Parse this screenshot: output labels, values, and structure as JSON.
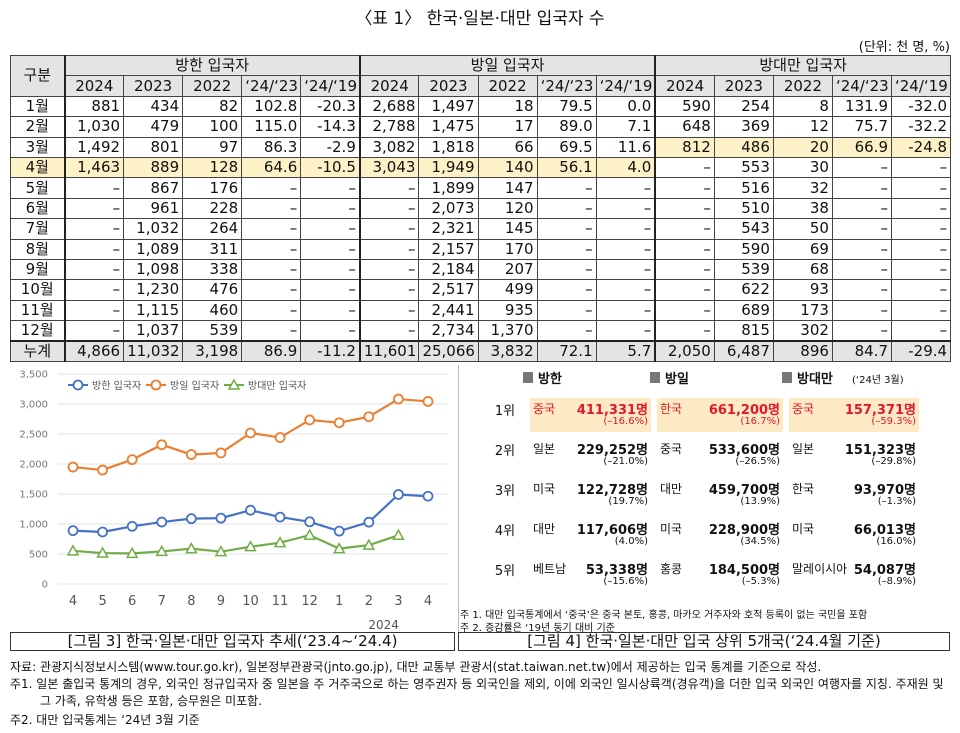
{
  "title": "〈표 1〉 한국·일본·대만 입국자 수",
  "unit": "(단위: 천 명, %)",
  "table": {
    "corner": "구분",
    "groups": [
      "방한 입국자",
      "방일 입국자",
      "방대만 입국자"
    ],
    "subheaders": [
      "2024",
      "2023",
      "2022",
      "‘24/‘23",
      "‘24/‘19",
      "2024",
      "2023",
      "2022",
      "‘24/‘23",
      "‘24/‘19",
      "2024",
      "2023",
      "2022",
      "‘24/‘23",
      "‘24/‘19"
    ],
    "rows": [
      [
        "1월",
        "881",
        "434",
        "82",
        "102.8",
        "-20.3",
        "2,688",
        "1,497",
        "18",
        "79.5",
        "0.0",
        "590",
        "254",
        "8",
        "131.9",
        "-32.0"
      ],
      [
        "2월",
        "1,030",
        "479",
        "100",
        "115.0",
        "-14.3",
        "2,788",
        "1,475",
        "17",
        "89.0",
        "7.1",
        "648",
        "369",
        "12",
        "75.7",
        "-32.2"
      ],
      [
        "3월",
        "1,492",
        "801",
        "97",
        "86.3",
        "-2.9",
        "3,082",
        "1,818",
        "66",
        "69.5",
        "11.6",
        "812",
        "486",
        "20",
        "66.9",
        "-24.8"
      ],
      [
        "4월",
        "1,463",
        "889",
        "128",
        "64.6",
        "-10.5",
        "3,043",
        "1,949",
        "140",
        "56.1",
        "4.0",
        "–",
        "553",
        "30",
        "–",
        "–"
      ],
      [
        "5월",
        "–",
        "867",
        "176",
        "–",
        "–",
        "–",
        "1,899",
        "147",
        "–",
        "–",
        "–",
        "516",
        "32",
        "–",
        "–"
      ],
      [
        "6월",
        "–",
        "961",
        "228",
        "–",
        "–",
        "–",
        "2,073",
        "120",
        "–",
        "–",
        "–",
        "510",
        "38",
        "–",
        "–"
      ],
      [
        "7월",
        "–",
        "1,032",
        "264",
        "–",
        "–",
        "–",
        "2,321",
        "145",
        "–",
        "–",
        "–",
        "543",
        "50",
        "–",
        "–"
      ],
      [
        "8월",
        "–",
        "1,089",
        "311",
        "–",
        "–",
        "–",
        "2,157",
        "170",
        "–",
        "–",
        "–",
        "590",
        "69",
        "–",
        "–"
      ],
      [
        "9월",
        "–",
        "1,098",
        "338",
        "–",
        "–",
        "–",
        "2,184",
        "207",
        "–",
        "–",
        "–",
        "539",
        "68",
        "–",
        "–"
      ],
      [
        "10월",
        "–",
        "1,230",
        "476",
        "–",
        "–",
        "–",
        "2,517",
        "499",
        "–",
        "–",
        "–",
        "622",
        "93",
        "–",
        "–"
      ],
      [
        "11월",
        "–",
        "1,115",
        "460",
        "–",
        "–",
        "–",
        "2,441",
        "935",
        "–",
        "–",
        "–",
        "689",
        "173",
        "–",
        "–"
      ],
      [
        "12월",
        "–",
        "1,037",
        "539",
        "–",
        "–",
        "–",
        "2,734",
        "1,370",
        "–",
        "–",
        "–",
        "815",
        "302",
        "–",
        "–"
      ],
      [
        "누계",
        "4,866",
        "11,032",
        "3,198",
        "86.9",
        "-11.2",
        "11,601",
        "25,066",
        "3,832",
        "72.1",
        "5.7",
        "2,050",
        "6,487",
        "896",
        "84.7",
        "-29.4"
      ]
    ]
  },
  "chart_data": {
    "type": "line",
    "categories": [
      "4",
      "5",
      "6",
      "7",
      "8",
      "9",
      "10",
      "11",
      "12",
      "1",
      "2",
      "3",
      "4"
    ],
    "x_group_label": "2024",
    "ylim": [
      0,
      3500
    ],
    "yticks": [
      0,
      500,
      {
        "value": 1000,
        "label": "1,000"
      },
      {
        "value": 1500,
        "label": "1,500"
      },
      {
        "value": 2000,
        "label": "2,000"
      },
      {
        "value": 2500,
        "label": "2,500"
      },
      {
        "value": 3000,
        "label": "3,000"
      },
      {
        "value": 3500,
        "label": "3,500"
      }
    ],
    "grid": true,
    "series": [
      {
        "name": "방한 입국자",
        "color": "#4472c4",
        "values": [
          889,
          867,
          961,
          1032,
          1089,
          1098,
          1230,
          1115,
          1037,
          881,
          1030,
          1492,
          1463
        ]
      },
      {
        "name": "방일 입국자",
        "color": "#ed7d31",
        "values": [
          1949,
          1899,
          2073,
          2321,
          2157,
          2184,
          2517,
          2441,
          2734,
          2688,
          2788,
          3082,
          3043
        ]
      },
      {
        "name": "방대만 입국자",
        "color": "#70ad47",
        "values": [
          553,
          516,
          510,
          543,
          590,
          539,
          622,
          689,
          815,
          590,
          648,
          812,
          null
        ]
      }
    ]
  },
  "chart_caption": "[그림 3] 한국·일본·대만 입국자 추세(‘23.4~‘24.4)",
  "ranking": {
    "ranks": [
      "1위",
      "2위",
      "3위",
      "4위",
      "5위"
    ],
    "groups": [
      {
        "name": "방한",
        "items": [
          {
            "country": "중국",
            "count": "411,331명",
            "change": "(–16.6%)"
          },
          {
            "country": "일본",
            "count": "229,252명",
            "change": "(–21.0%)"
          },
          {
            "country": "미국",
            "count": "122,728명",
            "change": "(19.7%)"
          },
          {
            "country": "대만",
            "count": "117,606명",
            "change": "(4.0%)"
          },
          {
            "country": "베트남",
            "count": "53,338명",
            "change": "(–15.6%)"
          }
        ]
      },
      {
        "name": "방일",
        "items": [
          {
            "country": "한국",
            "count": "661,200명",
            "change": "(16.7%)"
          },
          {
            "country": "중국",
            "count": "533,600명",
            "change": "(–26.5%)"
          },
          {
            "country": "대만",
            "count": "459,700명",
            "change": "(13.9%)"
          },
          {
            "country": "미국",
            "count": "228,900명",
            "change": "(34.5%)"
          },
          {
            "country": "홍콩",
            "count": "184,500명",
            "change": "(–5.3%)"
          }
        ]
      },
      {
        "name": "방대만",
        "note": "(‘24년 3월)",
        "items": [
          {
            "country": "중국",
            "count": "157,371명",
            "change": "(–59.3%)"
          },
          {
            "country": "일본",
            "count": "151,323명",
            "change": "(–29.8%)"
          },
          {
            "country": "한국",
            "count": "93,970명",
            "change": "(–1.3%)"
          },
          {
            "country": "미국",
            "count": "66,013명",
            "change": "(16.0%)"
          },
          {
            "country": "말레이시아",
            "count": "54,087명",
            "change": "(–8.9%)"
          }
        ]
      }
    ],
    "notes": [
      "주 1. 대만 입국통계에서 ‘중국’은 중국 본토, 홍콩, 마카오 거주자와 호적 등록이 없는 국민을 포함",
      "주 2. 증감률은 ‘19년 동기 대비 기준"
    ],
    "caption": "[그림 4] 한국·일본·대만 입국 상위 5개국(‘24.4월 기준)"
  },
  "footnotes": [
    "자료: 관광지식정보시스템(www.tour.go.kr), 일본정부관광국(jnto.go.jp), 대만 교통부 관광서(stat.taiwan.net.tw)에서 제공하는 입국 통계를 기준으로 작성.",
    "주1. 일본 출입국 통계의 경우, 외국인 정규입국자 중 일본을 주 거주국으로 하는 영주권자 등 외국인을 제외, 이에 외국인 일시상륙객(경유객)을 더한 입국 외국인 여행자를 지칭. 주재원 및 그 가족, 유학생 등은 포함, 승무원은 미포함.",
    "주2. 대만 입국통계는 ‘24년 3월 기준"
  ]
}
